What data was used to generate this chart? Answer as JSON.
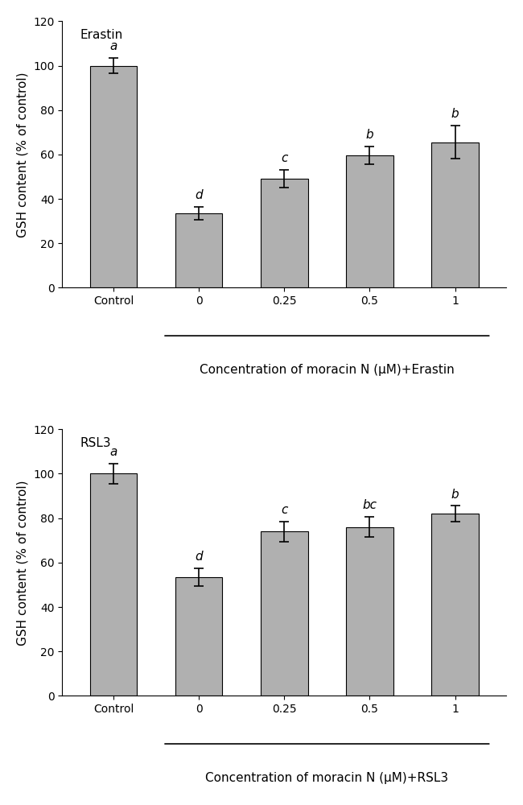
{
  "top": {
    "label": "Erastin",
    "categories": [
      "Control",
      "0",
      "0.25",
      "0.5",
      "1"
    ],
    "values": [
      100,
      33.5,
      49,
      59.5,
      65.5
    ],
    "errors": [
      3.5,
      3.0,
      4.0,
      4.0,
      7.5
    ],
    "sig_labels": [
      "a",
      "d",
      "c",
      "b",
      "b"
    ],
    "xlabel": "Concentration of moracin N (μM)+Erastin",
    "ylabel": "GSH content (% of control)",
    "ylim": [
      0,
      120
    ],
    "yticks": [
      0,
      20,
      40,
      60,
      80,
      100,
      120
    ]
  },
  "bottom": {
    "label": "RSL3",
    "categories": [
      "Control",
      "0",
      "0.25",
      "0.5",
      "1"
    ],
    "values": [
      100,
      53.5,
      74,
      76,
      82
    ],
    "errors": [
      4.5,
      4.0,
      4.5,
      4.5,
      3.5
    ],
    "sig_labels": [
      "a",
      "d",
      "c",
      "bc",
      "b"
    ],
    "xlabel": "Concentration of moracin N (μM)+RSL3",
    "ylabel": "GSH content (% of control)",
    "ylim": [
      0,
      120
    ],
    "yticks": [
      0,
      20,
      40,
      60,
      80,
      100,
      120
    ]
  },
  "bar_color": "#b0b0b0",
  "bar_edgecolor": "#000000",
  "bar_width": 0.55,
  "fontsize": 11,
  "label_fontsize": 11,
  "sig_fontsize": 11,
  "tick_fontsize": 10,
  "capsize": 4,
  "elinewidth": 1.2,
  "ecapthick": 1.2
}
